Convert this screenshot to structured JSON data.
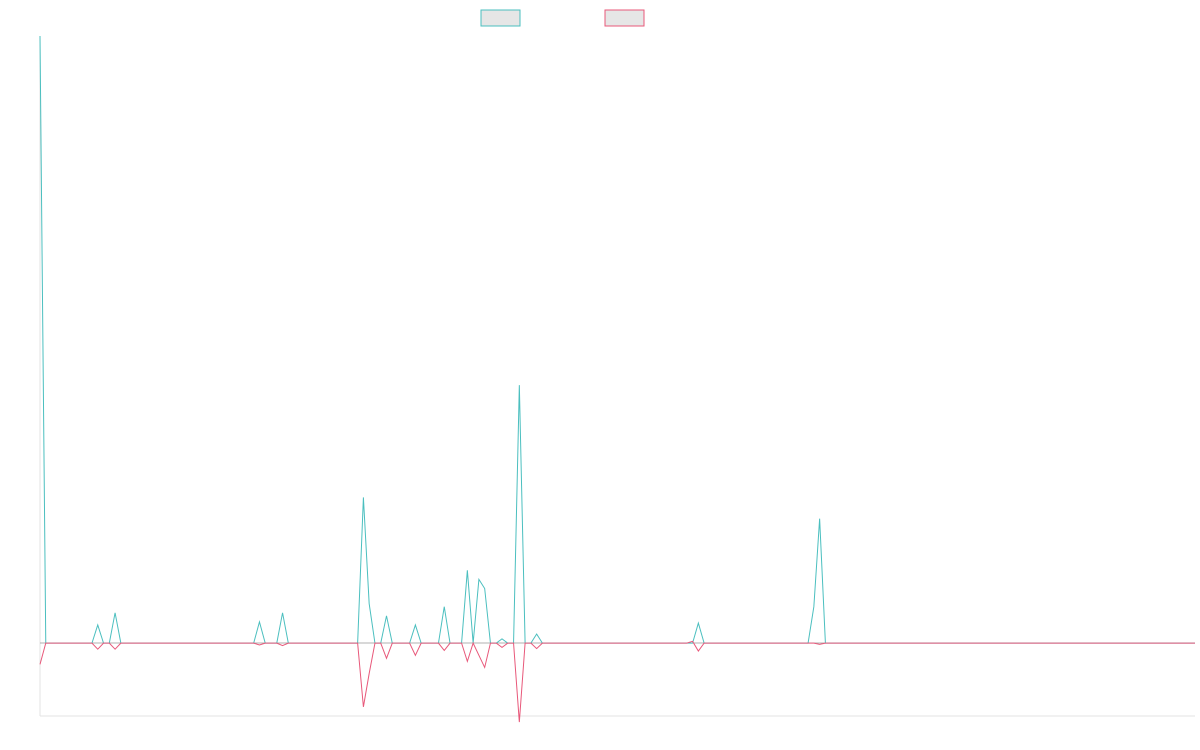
{
  "chart_data": {
    "type": "line",
    "title": "",
    "xlabel": "",
    "ylabel": "",
    "x_count": 200,
    "ylim": [
      -12,
      100
    ],
    "grid": false,
    "legend_position": "top-center",
    "series": [
      {
        "name": "",
        "color": "#4bbfbf",
        "fill": "#e6e6e6",
        "points": [
          [
            0,
            100
          ],
          [
            1,
            0
          ],
          [
            9,
            0
          ],
          [
            10,
            3
          ],
          [
            11,
            0
          ],
          [
            12,
            0
          ],
          [
            13,
            5
          ],
          [
            14,
            0
          ],
          [
            37,
            0
          ],
          [
            38,
            3.5
          ],
          [
            39,
            0
          ],
          [
            41,
            0
          ],
          [
            42,
            5
          ],
          [
            43,
            0
          ],
          [
            55,
            0
          ],
          [
            56,
            24
          ],
          [
            57,
            6.5
          ],
          [
            58,
            0
          ],
          [
            59,
            0
          ],
          [
            60,
            4.5
          ],
          [
            61,
            0
          ],
          [
            64,
            0
          ],
          [
            65,
            3
          ],
          [
            66,
            0
          ],
          [
            69,
            0
          ],
          [
            70,
            6
          ],
          [
            71,
            0
          ],
          [
            73,
            0
          ],
          [
            74,
            12
          ],
          [
            75,
            0
          ],
          [
            76,
            10.5
          ],
          [
            77,
            9
          ],
          [
            78,
            0
          ],
          [
            79,
            0
          ],
          [
            80,
            0.7
          ],
          [
            81,
            0
          ],
          [
            82,
            0
          ],
          [
            83,
            42.5
          ],
          [
            84,
            0
          ],
          [
            85,
            0
          ],
          [
            86,
            1.5
          ],
          [
            87,
            0
          ],
          [
            113,
            0
          ],
          [
            114,
            3.3
          ],
          [
            115,
            0
          ],
          [
            133,
            0
          ],
          [
            134,
            6
          ],
          [
            135,
            20.5
          ],
          [
            136,
            0
          ],
          [
            200,
            0
          ]
        ]
      },
      {
        "name": "",
        "color": "#e8587a",
        "fill": "#e6e6e6",
        "points": [
          [
            0,
            -3.5
          ],
          [
            1,
            0
          ],
          [
            9,
            0
          ],
          [
            10,
            -1
          ],
          [
            11,
            0
          ],
          [
            12,
            0
          ],
          [
            13,
            -1
          ],
          [
            14,
            0
          ],
          [
            37,
            0
          ],
          [
            38,
            -0.3
          ],
          [
            39,
            0
          ],
          [
            41,
            0
          ],
          [
            42,
            -0.4
          ],
          [
            43,
            0
          ],
          [
            55,
            0
          ],
          [
            56,
            -10.5
          ],
          [
            57,
            -5
          ],
          [
            58,
            0
          ],
          [
            59,
            0
          ],
          [
            60,
            -2.5
          ],
          [
            61,
            0
          ],
          [
            64,
            0
          ],
          [
            65,
            -2
          ],
          [
            66,
            0
          ],
          [
            69,
            0
          ],
          [
            70,
            -1.2
          ],
          [
            71,
            0
          ],
          [
            73,
            0
          ],
          [
            74,
            -3
          ],
          [
            75,
            0
          ],
          [
            76,
            -2
          ],
          [
            77,
            -4
          ],
          [
            78,
            0
          ],
          [
            79,
            0
          ],
          [
            80,
            -0.7
          ],
          [
            81,
            0
          ],
          [
            82,
            0
          ],
          [
            83,
            -13
          ],
          [
            84,
            0
          ],
          [
            85,
            0
          ],
          [
            86,
            -0.9
          ],
          [
            87,
            0
          ],
          [
            112,
            0
          ],
          [
            113,
            0.3
          ],
          [
            114,
            -1.3
          ],
          [
            115,
            0
          ],
          [
            133,
            0
          ],
          [
            134,
            0
          ],
          [
            135,
            -0.2
          ],
          [
            136,
            0
          ],
          [
            200,
            0
          ]
        ]
      }
    ]
  }
}
